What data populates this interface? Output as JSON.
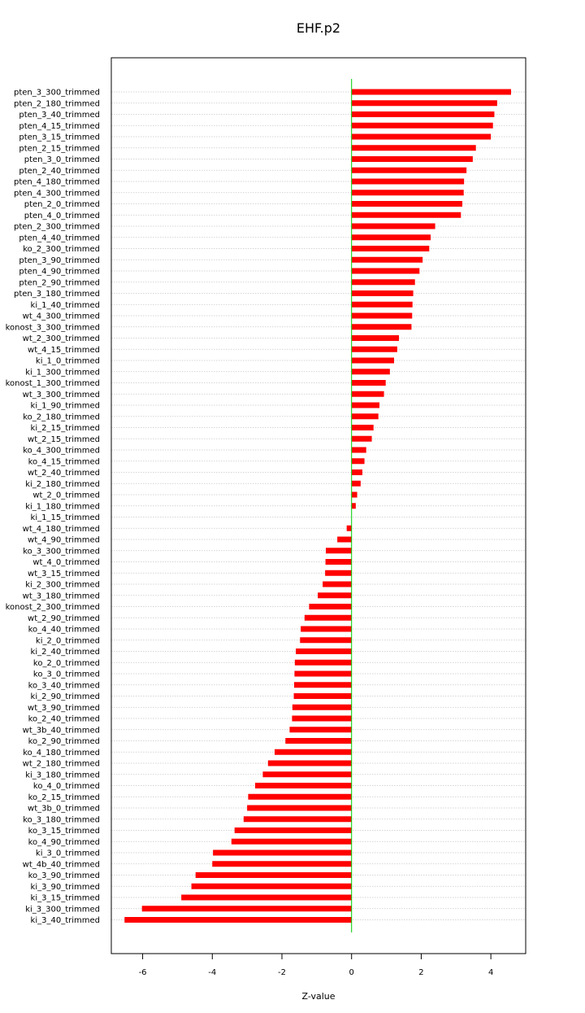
{
  "chart_data": {
    "type": "bar",
    "orientation": "horizontal",
    "title": "EHF.p2",
    "xlabel": "Z-value",
    "ylabel": "",
    "xlim": [
      -6.9,
      5.0
    ],
    "xticks": [
      -6,
      -4,
      -2,
      0,
      2,
      4
    ],
    "grid": "horizontal dotted",
    "bar_color": "#ff0000",
    "zero_line_color": "#00cc00",
    "categories": [
      "pten_3_300_trimmed",
      "pten_2_180_trimmed",
      "pten_3_40_trimmed",
      "pten_4_15_trimmed",
      "pten_3_15_trimmed",
      "pten_2_15_trimmed",
      "pten_3_0_trimmed",
      "pten_2_40_trimmed",
      "pten_4_180_trimmed",
      "pten_4_300_trimmed",
      "pten_2_0_trimmed",
      "pten_4_0_trimmed",
      "pten_2_300_trimmed",
      "pten_4_40_trimmed",
      "ko_2_300_trimmed",
      "pten_3_90_trimmed",
      "pten_4_90_trimmed",
      "pten_2_90_trimmed",
      "pten_3_180_trimmed",
      "ki_1_40_trimmed",
      "wt_4_300_trimmed",
      "konost_3_300_trimmed",
      "wt_2_300_trimmed",
      "wt_4_15_trimmed",
      "ki_1_0_trimmed",
      "ki_1_300_trimmed",
      "konost_1_300_trimmed",
      "wt_3_300_trimmed",
      "ki_1_90_trimmed",
      "ko_2_180_trimmed",
      "ki_2_15_trimmed",
      "wt_2_15_trimmed",
      "ko_4_300_trimmed",
      "ko_4_15_trimmed",
      "wt_2_40_trimmed",
      "ki_2_180_trimmed",
      "wt_2_0_trimmed",
      "ki_1_180_trimmed",
      "ki_1_15_trimmed",
      "wt_4_180_trimmed",
      "wt_4_90_trimmed",
      "ko_3_300_trimmed",
      "wt_4_0_trimmed",
      "wt_3_15_trimmed",
      "ki_2_300_trimmed",
      "wt_3_180_trimmed",
      "konost_2_300_trimmed",
      "wt_2_90_trimmed",
      "ko_4_40_trimmed",
      "ki_2_0_trimmed",
      "ki_2_40_trimmed",
      "ko_2_0_trimmed",
      "ko_3_0_trimmed",
      "ko_3_40_trimmed",
      "ki_2_90_trimmed",
      "wt_3_90_trimmed",
      "ko_2_40_trimmed",
      "wt_3b_40_trimmed",
      "ko_2_90_trimmed",
      "ko_4_180_trimmed",
      "wt_2_180_trimmed",
      "ki_3_180_trimmed",
      "ko_4_0_trimmed",
      "ko_2_15_trimmed",
      "wt_3b_0_trimmed",
      "ko_3_180_trimmed",
      "ko_3_15_trimmed",
      "ko_4_90_trimmed",
      "ki_3_0_trimmed",
      "wt_4b_40_trimmed",
      "ko_3_90_trimmed",
      "ki_3_90_trimmed",
      "ki_3_15_trimmed",
      "ki_3_300_trimmed",
      "ki_3_40_trimmed"
    ],
    "values": [
      4.58,
      4.18,
      4.1,
      4.06,
      4.0,
      3.57,
      3.48,
      3.3,
      3.23,
      3.22,
      3.18,
      3.14,
      2.4,
      2.27,
      2.23,
      2.04,
      1.95,
      1.82,
      1.77,
      1.75,
      1.74,
      1.72,
      1.36,
      1.31,
      1.22,
      1.1,
      0.98,
      0.93,
      0.8,
      0.77,
      0.63,
      0.58,
      0.42,
      0.37,
      0.31,
      0.26,
      0.16,
      0.12,
      0.0,
      -0.14,
      -0.41,
      -0.74,
      -0.75,
      -0.76,
      -0.83,
      -0.97,
      -1.22,
      -1.35,
      -1.46,
      -1.48,
      -1.6,
      -1.63,
      -1.64,
      -1.65,
      -1.66,
      -1.7,
      -1.71,
      -1.78,
      -1.9,
      -2.21,
      -2.4,
      -2.55,
      -2.77,
      -2.97,
      -3.0,
      -3.1,
      -3.36,
      -3.45,
      -3.98,
      -4.0,
      -4.48,
      -4.6,
      -4.89,
      -6.02,
      -6.52
    ]
  }
}
